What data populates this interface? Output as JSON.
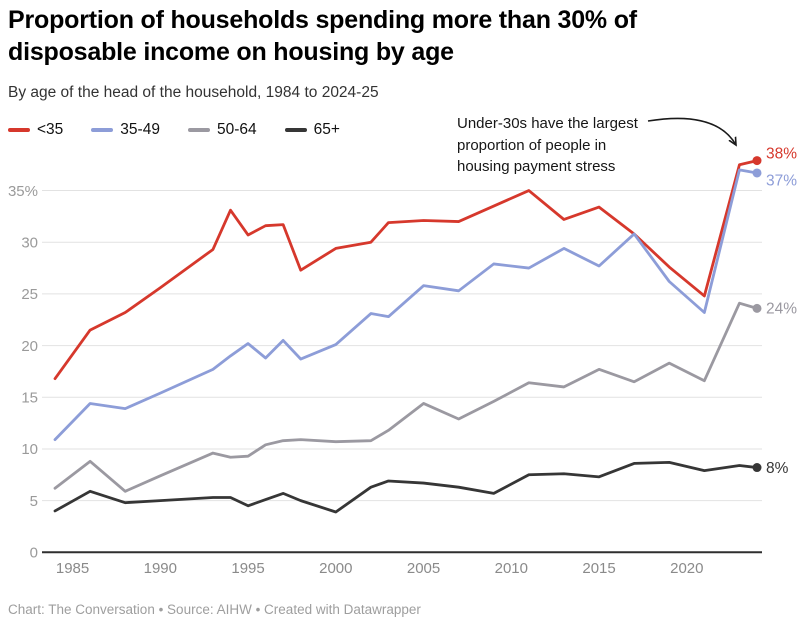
{
  "header": {
    "title": "Proportion of households spending more than 30% of disposable income on housing by age",
    "subtitle": "By age of the head of the household, 1984 to 2024-25"
  },
  "annotation": {
    "text": "Under-30s have the largest\nproportion of people in\nhousing payment stress"
  },
  "footer": {
    "text": "Chart: The Conversation • Source: AIHW • Created with Datawrapper"
  },
  "chart_data": {
    "type": "line",
    "title": "Proportion of households spending more than 30% of disposable income on housing by age",
    "subtitle": "By age of the head of the household, 1984 to 2024-25",
    "xlabel": "",
    "ylabel": "",
    "grid": true,
    "legend_position": "top-left",
    "xlim": [
      1983.3,
      2025
    ],
    "ylim": [
      0,
      38.5
    ],
    "x": [
      1984,
      1986,
      1988,
      1990,
      1993,
      1994,
      1995,
      1996,
      1997,
      1998,
      2000,
      2002,
      2003,
      2005,
      2007,
      2009,
      2011,
      2013,
      2015,
      2017,
      2019,
      2021,
      2023,
      2024
    ],
    "last_point_label": "2024-25",
    "xticks": [
      1985,
      1990,
      1995,
      2000,
      2005,
      2010,
      2015,
      2020
    ],
    "xtick_labels": [
      "1985",
      "1990",
      "1995",
      "2000",
      "2005",
      "2010",
      "2015",
      "2020"
    ],
    "yticks": [
      0,
      5,
      10,
      15,
      20,
      25,
      30,
      35
    ],
    "ytick_labels": [
      "0",
      "5",
      "10",
      "15",
      "20",
      "25",
      "30",
      "35%"
    ],
    "series": [
      {
        "name": "<35",
        "slug": "under-35",
        "color": "#d6382c",
        "end_label": "38%",
        "values": [
          16.8,
          21.5,
          23.2,
          25.6,
          29.3,
          33.1,
          30.7,
          31.6,
          31.7,
          27.3,
          29.4,
          30.0,
          31.9,
          32.1,
          32.0,
          33.5,
          35.0,
          32.2,
          33.4,
          30.8,
          27.6,
          24.8,
          37.5,
          37.9
        ]
      },
      {
        "name": "35-49",
        "slug": "35-49",
        "color": "#8d9dd8",
        "end_label": "37%",
        "values": [
          10.9,
          14.4,
          13.9,
          15.4,
          17.7,
          19.0,
          20.2,
          18.8,
          20.5,
          18.7,
          20.1,
          23.1,
          22.8,
          25.8,
          25.3,
          27.9,
          27.5,
          29.4,
          27.7,
          30.8,
          26.2,
          23.2,
          37.0,
          36.7
        ]
      },
      {
        "name": "50-64",
        "slug": "50-64",
        "color": "#9b99a1",
        "end_label": "24%",
        "values": [
          6.2,
          8.8,
          5.9,
          7.4,
          9.6,
          9.2,
          9.3,
          10.4,
          10.8,
          10.9,
          10.7,
          10.8,
          11.8,
          14.4,
          12.9,
          14.6,
          16.4,
          16.0,
          17.7,
          16.5,
          18.3,
          16.6,
          24.1,
          23.6
        ]
      },
      {
        "name": "65+",
        "slug": "65-plus",
        "color": "#363636",
        "end_label": "8%",
        "values": [
          4.0,
          5.9,
          4.8,
          5.0,
          5.3,
          5.3,
          4.5,
          5.1,
          5.7,
          5.0,
          3.9,
          6.3,
          6.9,
          6.7,
          6.3,
          5.7,
          7.5,
          7.6,
          7.3,
          8.6,
          8.7,
          7.9,
          8.4,
          8.2
        ]
      }
    ]
  }
}
